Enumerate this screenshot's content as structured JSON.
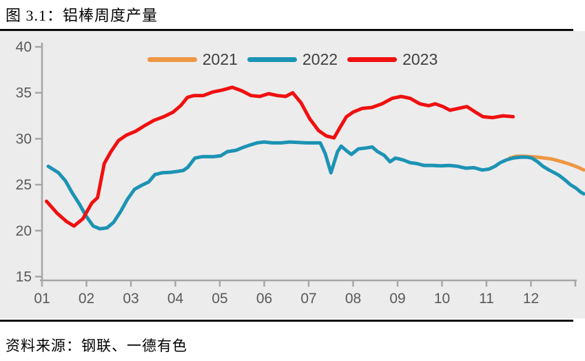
{
  "page": {
    "title": "图 3.1：铝棒周度产量",
    "source": "资料来源：钢联、一德有色"
  },
  "colors": {
    "panel_background": "#ECECEC",
    "axis_line": "#A6A6A6",
    "tick_label": "#595959",
    "legend_text": "#404040",
    "series_2021": "#ED9743",
    "series_2022": "#1C93B4",
    "series_2023": "#F01010"
  },
  "chart_data": {
    "type": "line",
    "title": "图 3.1：铝棒周度产量",
    "xlabel": "",
    "ylabel": "",
    "x_axis": {
      "tick_labels": [
        "01",
        "02",
        "03",
        "04",
        "05",
        "06",
        "07",
        "08",
        "09",
        "10",
        "11",
        "12"
      ],
      "unit": "month, weekly data points",
      "range_month_units": [
        1,
        13.2
      ]
    },
    "y_axis": {
      "ticks": [
        15,
        20,
        25,
        30,
        35,
        40
      ],
      "range": [
        15,
        40
      ]
    },
    "grid": false,
    "legend": {
      "position": "top-center",
      "entries": [
        "2021",
        "2022",
        "2023"
      ]
    },
    "series": [
      {
        "name": "2021",
        "color": "#ED9743",
        "points": [
          [
            11.52,
            27.9
          ],
          [
            11.68,
            28.1
          ],
          [
            11.83,
            28.1
          ],
          [
            11.99,
            28.05
          ],
          [
            12.15,
            28.0
          ],
          [
            12.3,
            27.9
          ],
          [
            12.46,
            27.8
          ],
          [
            12.58,
            27.65
          ],
          [
            12.7,
            27.5
          ],
          [
            12.83,
            27.3
          ],
          [
            12.95,
            27.1
          ],
          [
            13.08,
            26.85
          ],
          [
            13.19,
            26.6
          ]
        ]
      },
      {
        "name": "2022",
        "color": "#1C93B4",
        "points": [
          [
            1.14,
            27.0
          ],
          [
            1.37,
            26.3
          ],
          [
            1.53,
            25.4
          ],
          [
            1.68,
            24.1
          ],
          [
            1.84,
            22.9
          ],
          [
            1.99,
            21.6
          ],
          [
            2.15,
            20.5
          ],
          [
            2.3,
            20.2
          ],
          [
            2.46,
            20.3
          ],
          [
            2.61,
            20.9
          ],
          [
            2.77,
            22.1
          ],
          [
            2.92,
            23.4
          ],
          [
            3.08,
            24.5
          ],
          [
            3.23,
            24.9
          ],
          [
            3.4,
            25.3
          ],
          [
            3.54,
            26.1
          ],
          [
            3.7,
            26.3
          ],
          [
            3.9,
            26.35
          ],
          [
            4.05,
            26.45
          ],
          [
            4.18,
            26.55
          ],
          [
            4.28,
            26.9
          ],
          [
            4.44,
            27.9
          ],
          [
            4.6,
            28.05
          ],
          [
            4.86,
            28.05
          ],
          [
            5.02,
            28.15
          ],
          [
            5.17,
            28.6
          ],
          [
            5.37,
            28.75
          ],
          [
            5.52,
            29.05
          ],
          [
            5.67,
            29.3
          ],
          [
            5.84,
            29.55
          ],
          [
            6.0,
            29.65
          ],
          [
            6.18,
            29.55
          ],
          [
            6.38,
            29.55
          ],
          [
            6.57,
            29.65
          ],
          [
            6.76,
            29.6
          ],
          [
            6.95,
            29.55
          ],
          [
            7.26,
            29.55
          ],
          [
            7.37,
            28.4
          ],
          [
            7.5,
            26.3
          ],
          [
            7.65,
            28.6
          ],
          [
            7.73,
            29.2
          ],
          [
            7.85,
            28.7
          ],
          [
            7.96,
            28.3
          ],
          [
            8.12,
            28.9
          ],
          [
            8.3,
            29.0
          ],
          [
            8.43,
            29.1
          ],
          [
            8.55,
            28.6
          ],
          [
            8.7,
            28.2
          ],
          [
            8.83,
            27.5
          ],
          [
            8.95,
            27.9
          ],
          [
            9.12,
            27.7
          ],
          [
            9.28,
            27.4
          ],
          [
            9.43,
            27.3
          ],
          [
            9.59,
            27.1
          ],
          [
            9.79,
            27.1
          ],
          [
            9.98,
            27.05
          ],
          [
            10.16,
            27.1
          ],
          [
            10.35,
            27.0
          ],
          [
            10.53,
            26.8
          ],
          [
            10.72,
            26.85
          ],
          [
            10.91,
            26.6
          ],
          [
            11.06,
            26.7
          ],
          [
            11.19,
            27.0
          ],
          [
            11.31,
            27.4
          ],
          [
            11.45,
            27.7
          ],
          [
            11.6,
            27.9
          ],
          [
            11.76,
            28.0
          ],
          [
            11.91,
            28.0
          ],
          [
            12.02,
            27.9
          ],
          [
            12.15,
            27.5
          ],
          [
            12.27,
            27.0
          ],
          [
            12.41,
            26.6
          ],
          [
            12.53,
            26.3
          ],
          [
            12.64,
            26.0
          ],
          [
            12.77,
            25.5
          ],
          [
            12.89,
            25.0
          ],
          [
            13.02,
            24.6
          ],
          [
            13.12,
            24.2
          ],
          [
            13.19,
            24.0
          ]
        ]
      },
      {
        "name": "2023",
        "color": "#F01010",
        "points": [
          [
            1.1,
            23.2
          ],
          [
            1.34,
            21.9
          ],
          [
            1.55,
            21.0
          ],
          [
            1.72,
            20.5
          ],
          [
            1.92,
            21.3
          ],
          [
            2.12,
            23.0
          ],
          [
            2.25,
            23.6
          ],
          [
            2.4,
            27.3
          ],
          [
            2.55,
            28.6
          ],
          [
            2.72,
            29.8
          ],
          [
            2.9,
            30.4
          ],
          [
            3.1,
            30.8
          ],
          [
            3.3,
            31.4
          ],
          [
            3.52,
            32.0
          ],
          [
            3.74,
            32.4
          ],
          [
            3.95,
            32.9
          ],
          [
            4.12,
            33.6
          ],
          [
            4.27,
            34.5
          ],
          [
            4.42,
            34.7
          ],
          [
            4.63,
            34.7
          ],
          [
            4.85,
            35.1
          ],
          [
            5.06,
            35.3
          ],
          [
            5.28,
            35.6
          ],
          [
            5.5,
            35.2
          ],
          [
            5.7,
            34.7
          ],
          [
            5.9,
            34.6
          ],
          [
            6.1,
            34.9
          ],
          [
            6.3,
            34.7
          ],
          [
            6.48,
            34.6
          ],
          [
            6.64,
            35.0
          ],
          [
            6.83,
            33.9
          ],
          [
            7.02,
            32.2
          ],
          [
            7.22,
            30.9
          ],
          [
            7.4,
            30.3
          ],
          [
            7.57,
            30.1
          ],
          [
            7.7,
            31.2
          ],
          [
            7.85,
            32.4
          ],
          [
            8.0,
            32.9
          ],
          [
            8.2,
            33.3
          ],
          [
            8.42,
            33.4
          ],
          [
            8.65,
            33.8
          ],
          [
            8.88,
            34.4
          ],
          [
            9.08,
            34.6
          ],
          [
            9.28,
            34.4
          ],
          [
            9.5,
            33.8
          ],
          [
            9.7,
            33.6
          ],
          [
            9.85,
            33.8
          ],
          [
            10.02,
            33.5
          ],
          [
            10.18,
            33.1
          ],
          [
            10.36,
            33.3
          ],
          [
            10.56,
            33.5
          ],
          [
            10.75,
            32.9
          ],
          [
            10.92,
            32.4
          ],
          [
            11.14,
            32.3
          ],
          [
            11.37,
            32.5
          ],
          [
            11.6,
            32.4
          ]
        ]
      }
    ]
  }
}
